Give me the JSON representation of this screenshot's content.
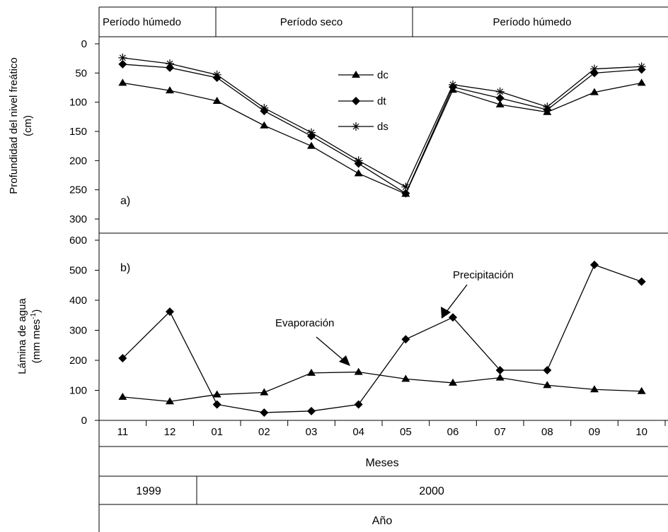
{
  "chart_data": [
    {
      "id": "a",
      "type": "line",
      "panel_label": "a)",
      "header_periods": [
        "Período húmedo",
        "Período seco",
        "Período húmedo"
      ],
      "ylabel": [
        "Profundidad del nivel freático",
        "(cm)"
      ],
      "yticks": [
        0,
        50,
        100,
        150,
        200,
        250,
        300
      ],
      "ylim": [
        0,
        300
      ],
      "y_inverted": true,
      "categories": [
        "11",
        "12",
        "01",
        "02",
        "03",
        "04",
        "05",
        "06",
        "07",
        "08",
        "09",
        "10"
      ],
      "series": [
        {
          "name": "dc",
          "marker": "triangle",
          "values": [
            67,
            80,
            98,
            140,
            175,
            222,
            257,
            79,
            104,
            117,
            83,
            67
          ]
        },
        {
          "name": "dt",
          "marker": "diamond",
          "values": [
            35,
            41,
            58,
            115,
            158,
            205,
            256,
            74,
            93,
            113,
            50,
            44
          ]
        },
        {
          "name": "ds",
          "marker": "star",
          "values": [
            24,
            34,
            53,
            110,
            152,
            200,
            245,
            70,
            82,
            108,
            43,
            39
          ]
        }
      ],
      "legend_position": "top-center"
    },
    {
      "id": "b",
      "type": "line",
      "panel_label": "b)",
      "ylabel": [
        "Lámina de agua",
        "(mm mes",
        "-1",
        ")"
      ],
      "yticks": [
        0,
        100,
        200,
        300,
        400,
        500,
        600
      ],
      "ylim": [
        0,
        600
      ],
      "categories": [
        "11",
        "12",
        "01",
        "02",
        "03",
        "04",
        "05",
        "06",
        "07",
        "08",
        "09",
        "10"
      ],
      "series": [
        {
          "name": "Precipitación",
          "marker": "diamond",
          "values": [
            207,
            362,
            53,
            26,
            31,
            53,
            270,
            343,
            167,
            167,
            518,
            462
          ]
        },
        {
          "name": "Evaporación",
          "marker": "triangle",
          "values": [
            78,
            63,
            86,
            93,
            158,
            161,
            138,
            125,
            142,
            117,
            103,
            97
          ]
        }
      ],
      "annotations": [
        "Evaporación",
        "Precipitación"
      ]
    }
  ],
  "footer": {
    "months_label": "Meses",
    "years": [
      "1999",
      "2000"
    ],
    "year_label": "Año"
  }
}
